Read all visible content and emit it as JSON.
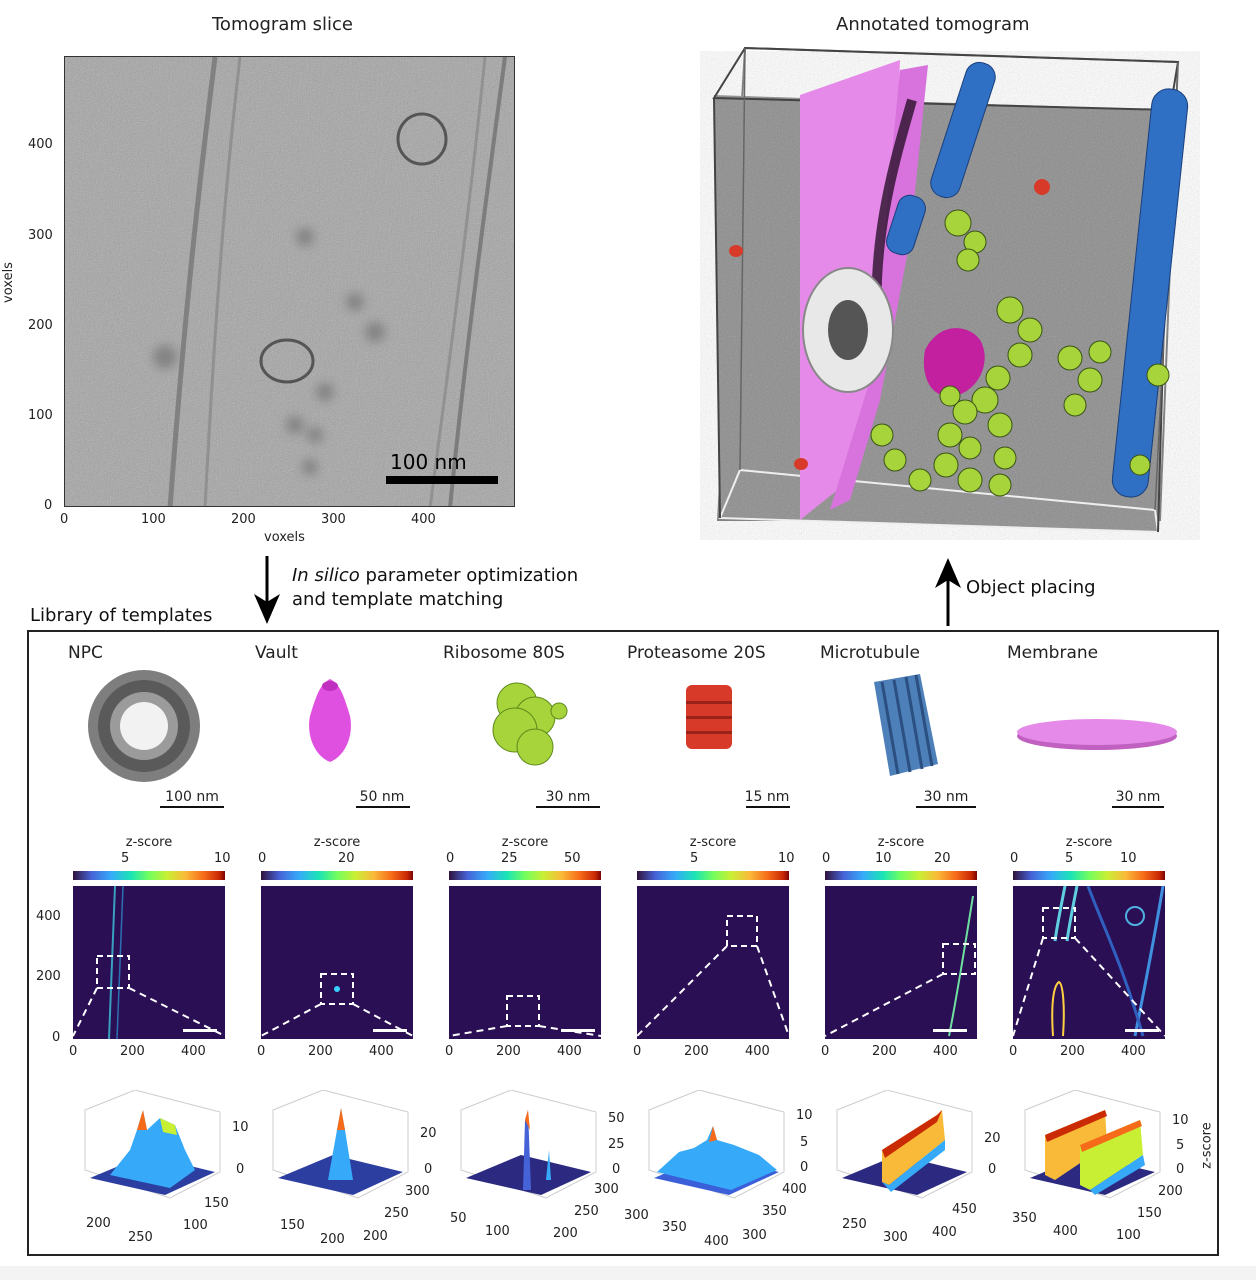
{
  "top_left": {
    "title": "Tomogram slice",
    "y_axis_label": "voxels",
    "x_axis_label": "voxels",
    "y_ticks": [
      "400",
      "300",
      "200",
      "100",
      "0"
    ],
    "x_ticks": [
      "0",
      "100",
      "200",
      "300",
      "400"
    ],
    "scale_bar": "100 nm"
  },
  "top_right": {
    "title": "Annotated tomogram"
  },
  "arrows": {
    "down_label_italic": "In silico",
    "down_label_rest": " parameter optimization",
    "down_label_line2": "and template matching",
    "up_label": "Object placing"
  },
  "library": {
    "title": "Library of templates",
    "templates": [
      {
        "name": "NPC",
        "scale": "100 nm",
        "zlabel": "z-score",
        "cticks": [
          "5",
          "10"
        ],
        "yticks": [
          "400",
          "200",
          "0"
        ],
        "xticks": [
          "0",
          "200",
          "400"
        ],
        "s3d_z": [
          "10",
          "0"
        ],
        "s3d_x": [
          "200",
          "250"
        ],
        "s3d_y": [
          "150",
          "100"
        ]
      },
      {
        "name": "Vault",
        "scale": "50 nm",
        "zlabel": "z-score",
        "cticks": [
          "0",
          "20"
        ],
        "yticks": [],
        "xticks": [
          "0",
          "200",
          "400"
        ],
        "s3d_z": [
          "20",
          "0"
        ],
        "s3d_x": [
          "150",
          "200"
        ],
        "s3d_y": [
          "300",
          "250",
          "200"
        ]
      },
      {
        "name": "Ribosome 80S",
        "scale": "30 nm",
        "zlabel": "z-score",
        "cticks": [
          "0",
          "25",
          "50"
        ],
        "yticks": [],
        "xticks": [
          "0",
          "200",
          "400"
        ],
        "s3d_z": [
          "50",
          "25",
          "0"
        ],
        "s3d_x": [
          "50",
          "100"
        ],
        "s3d_y": [
          "300",
          "250",
          "200"
        ]
      },
      {
        "name": "Proteasome 20S",
        "scale": "15 nm",
        "zlabel": "z-score",
        "cticks": [
          "5",
          "10"
        ],
        "yticks": [],
        "xticks": [
          "0",
          "200",
          "400"
        ],
        "s3d_z": [
          "10",
          "5",
          "0"
        ],
        "s3d_x": [
          "300",
          "350",
          "400"
        ],
        "s3d_y": [
          "400",
          "350",
          "300"
        ]
      },
      {
        "name": "Microtubule",
        "scale": "30 nm",
        "zlabel": "z-score",
        "cticks": [
          "0",
          "10",
          "20"
        ],
        "yticks": [],
        "xticks": [
          "0",
          "200",
          "400"
        ],
        "s3d_z": [
          "20",
          "0"
        ],
        "s3d_x": [
          "250",
          "300"
        ],
        "s3d_y": [
          "450",
          "400"
        ]
      },
      {
        "name": "Membrane",
        "scale": "30 nm",
        "zlabel": "z-score",
        "cticks": [
          "0",
          "5",
          "10"
        ],
        "yticks": [],
        "xticks": [
          "0",
          "200",
          "400"
        ],
        "s3d_z": [
          "10",
          "5",
          "0"
        ],
        "s3d_x": [
          "350",
          "400"
        ],
        "s3d_y": [
          "200",
          "150",
          "100"
        ],
        "s3d_zaxis": "z-score"
      }
    ]
  },
  "colors": {
    "membrane": "#e58ae8",
    "microtubule": "#2f6fc4",
    "ribosome": "#a6d43a",
    "vault": "#c2209e",
    "proteasome": "#d83a2a",
    "npc": "#dcdcdc",
    "heatmap_bg": "#2a0f55"
  }
}
